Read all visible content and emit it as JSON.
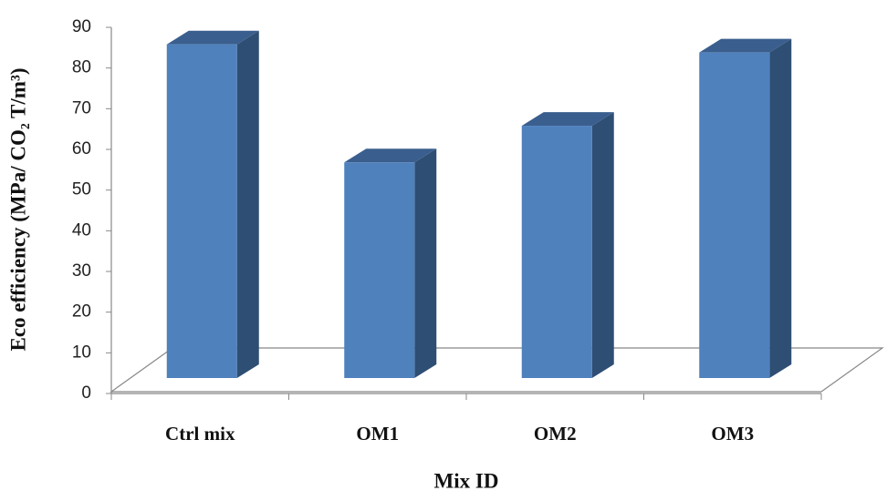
{
  "chart_data": {
    "type": "bar3d",
    "x_label": "Mix ID",
    "y_label": "Eco efficiency (MPa/ CO₂ T/m³)",
    "categories": [
      "Ctrl mix",
      "OM1",
      "OM2",
      "OM3"
    ],
    "values": [
      82,
      53,
      62,
      80
    ],
    "color": "#4f81bd",
    "ylim": [
      0,
      90
    ],
    "yticks": [
      0,
      10,
      20,
      30,
      40,
      50,
      60,
      70,
      80,
      90
    ]
  }
}
